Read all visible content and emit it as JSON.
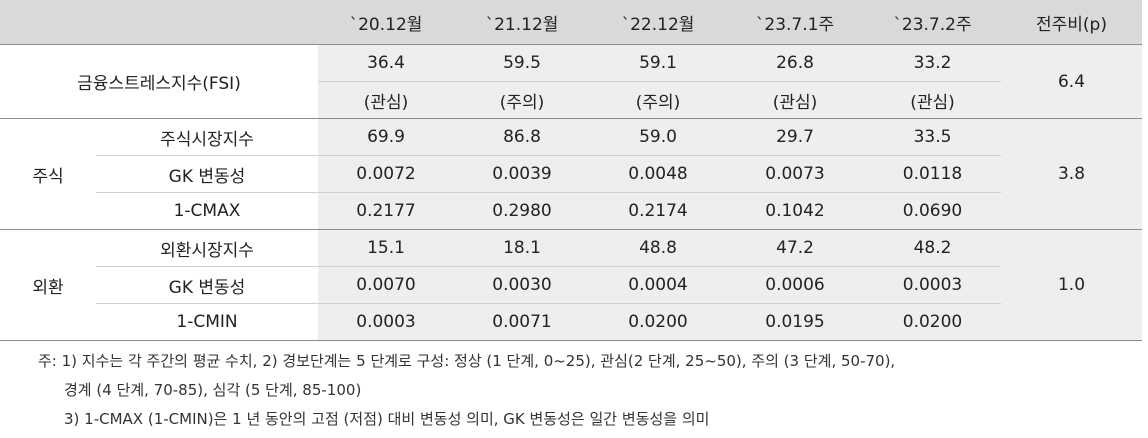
{
  "table": {
    "headers": [
      "",
      "",
      "`20.12월",
      "`21.12월",
      "`22.12월",
      "`23.7.1주",
      "`23.7.2주",
      "전주비(p)"
    ],
    "fsi": {
      "label": "금융스트레스지수(FSI)",
      "values": [
        "36.4",
        "59.5",
        "59.1",
        "26.8",
        "33.2"
      ],
      "status": [
        "(관심)",
        "(주의)",
        "(주의)",
        "(관심)",
        "(관심)"
      ],
      "diff": "6.4"
    },
    "stock": {
      "category": "주식",
      "diff": "3.8",
      "rows": [
        {
          "label": "주식시장지수",
          "values": [
            "69.9",
            "86.8",
            "59.0",
            "29.7",
            "33.5"
          ]
        },
        {
          "label": "GK 변동성",
          "values": [
            "0.0072",
            "0.0039",
            "0.0048",
            "0.0073",
            "0.0118"
          ]
        },
        {
          "label": "1-CMAX",
          "values": [
            "0.2177",
            "0.2980",
            "0.2174",
            "0.1042",
            "0.0690"
          ]
        }
      ]
    },
    "fx": {
      "category": "외환",
      "diff": "1.0",
      "rows": [
        {
          "label": "외환시장지수",
          "values": [
            "15.1",
            "18.1",
            "48.8",
            "47.2",
            "48.2"
          ]
        },
        {
          "label": "GK 변동성",
          "values": [
            "0.0070",
            "0.0030",
            "0.0004",
            "0.0006",
            "0.0003"
          ]
        },
        {
          "label": "1-CMIN",
          "values": [
            "0.0003",
            "0.0071",
            "0.0200",
            "0.0195",
            "0.0200"
          ]
        }
      ]
    }
  },
  "notes": {
    "line1": "주: 1) 지수는 각 주간의 평균 수치, 2) 경보단계는 5 단계로 구성: 정상 (1 단계, 0~25), 관심(2 단계, 25~50), 주의 (3 단계, 50-70),",
    "line2": "경계 (4 단계, 70-85), 심각 (5 단계, 85-100)",
    "line3": "3) 1-CMAX (1-CMIN)은 1 년 동안의 고점 (저점) 대비 변동성 의미, GK 변동성은 일간 변동성을 의미"
  }
}
